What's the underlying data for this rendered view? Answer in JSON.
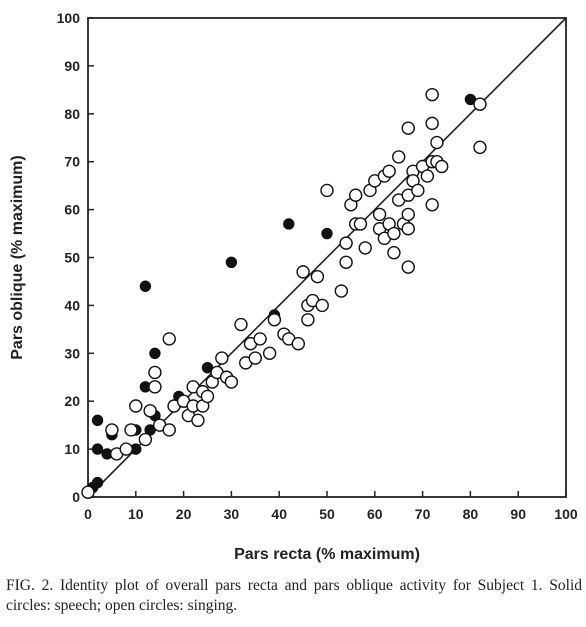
{
  "caption": "FIG. 2. Identity plot of overall pars recta and pars oblique activity for Subject 1. Solid circles: speech; open circles: singing.",
  "chart_data": {
    "type": "scatter",
    "xlabel": "Pars recta (% maximum)",
    "ylabel": "Pars oblique (% maximum)",
    "xlim": [
      0,
      100
    ],
    "ylim": [
      0,
      100
    ],
    "xticks": [
      0,
      10,
      20,
      30,
      40,
      50,
      60,
      70,
      80,
      90,
      100
    ],
    "yticks": [
      0,
      10,
      20,
      30,
      40,
      50,
      60,
      70,
      80,
      90,
      100
    ],
    "grid": false,
    "identity_line": true,
    "series": [
      {
        "name": "speech",
        "marker": "filled-circle",
        "points": [
          [
            1,
            2
          ],
          [
            2,
            3
          ],
          [
            2,
            10
          ],
          [
            2,
            16
          ],
          [
            4,
            9
          ],
          [
            5,
            13
          ],
          [
            10,
            14
          ],
          [
            10,
            10
          ],
          [
            12,
            44
          ],
          [
            12,
            23
          ],
          [
            13,
            14
          ],
          [
            14,
            30
          ],
          [
            14,
            17
          ],
          [
            19,
            21
          ],
          [
            25,
            27
          ],
          [
            30,
            49
          ],
          [
            39,
            38
          ],
          [
            42,
            57
          ],
          [
            50,
            55
          ],
          [
            80,
            83
          ]
        ]
      },
      {
        "name": "singing",
        "marker": "open-circle",
        "points": [
          [
            0,
            1
          ],
          [
            5,
            14
          ],
          [
            6,
            9
          ],
          [
            8,
            10
          ],
          [
            10,
            19
          ],
          [
            9,
            14
          ],
          [
            12,
            12
          ],
          [
            13,
            18
          ],
          [
            14,
            26
          ],
          [
            14,
            23
          ],
          [
            15,
            15
          ],
          [
            17,
            14
          ],
          [
            17,
            33
          ],
          [
            18,
            19
          ],
          [
            20,
            20
          ],
          [
            21,
            17
          ],
          [
            22,
            19
          ],
          [
            22,
            23
          ],
          [
            23,
            16
          ],
          [
            24,
            22
          ],
          [
            24,
            19
          ],
          [
            25,
            21
          ],
          [
            26,
            24
          ],
          [
            27,
            26
          ],
          [
            28,
            29
          ],
          [
            29,
            25
          ],
          [
            30,
            24
          ],
          [
            32,
            36
          ],
          [
            33,
            28
          ],
          [
            34,
            32
          ],
          [
            35,
            29
          ],
          [
            36,
            33
          ],
          [
            38,
            30
          ],
          [
            39,
            37
          ],
          [
            41,
            34
          ],
          [
            42,
            33
          ],
          [
            44,
            32
          ],
          [
            45,
            47
          ],
          [
            46,
            37
          ],
          [
            46,
            40
          ],
          [
            47,
            41
          ],
          [
            48,
            46
          ],
          [
            49,
            40
          ],
          [
            50,
            64
          ],
          [
            53,
            43
          ],
          [
            54,
            49
          ],
          [
            54,
            53
          ],
          [
            55,
            61
          ],
          [
            56,
            63
          ],
          [
            56,
            57
          ],
          [
            57,
            57
          ],
          [
            58,
            52
          ],
          [
            59,
            64
          ],
          [
            60,
            66
          ],
          [
            61,
            59
          ],
          [
            61,
            56
          ],
          [
            62,
            54
          ],
          [
            62,
            67
          ],
          [
            63,
            68
          ],
          [
            63,
            57
          ],
          [
            64,
            51
          ],
          [
            64,
            55
          ],
          [
            65,
            71
          ],
          [
            65,
            62
          ],
          [
            66,
            57
          ],
          [
            67,
            63
          ],
          [
            67,
            56
          ],
          [
            67,
            48
          ],
          [
            67,
            77
          ],
          [
            67,
            59
          ],
          [
            68,
            68
          ],
          [
            68,
            66
          ],
          [
            69,
            64
          ],
          [
            70,
            69
          ],
          [
            71,
            67
          ],
          [
            72,
            70
          ],
          [
            72,
            61
          ],
          [
            72,
            78
          ],
          [
            72,
            84
          ],
          [
            73,
            74
          ],
          [
            73,
            70
          ],
          [
            74,
            69
          ],
          [
            82,
            73
          ],
          [
            82,
            82
          ]
        ]
      }
    ]
  }
}
